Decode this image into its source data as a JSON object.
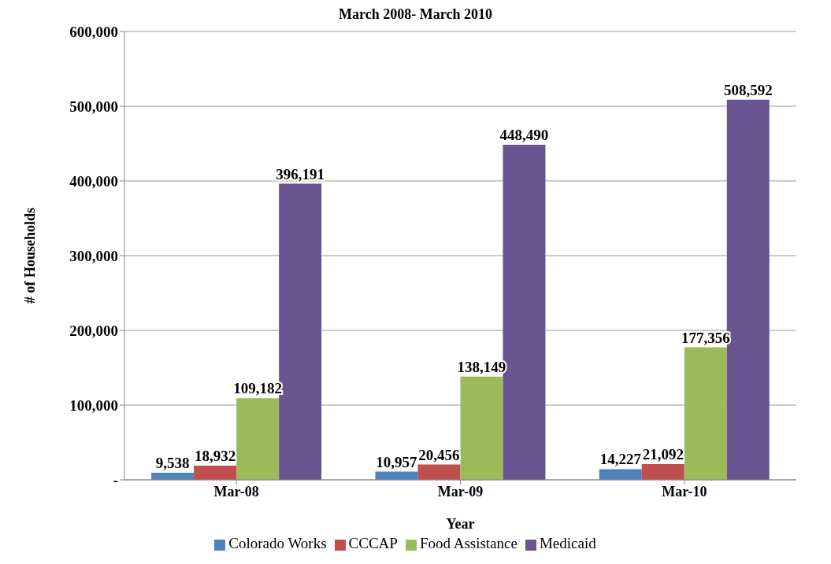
{
  "chart_data": {
    "type": "bar",
    "title": "March 2008- March 2010",
    "xlabel": "Year",
    "ylabel": "# of Households",
    "categories": [
      "Mar-08",
      "Mar-09",
      "Mar-10"
    ],
    "series": [
      {
        "name": "Colorado Works",
        "color": "#4f81bd",
        "values": [
          9538,
          10957,
          14227
        ],
        "value_labels": [
          "9,538",
          "10,957",
          "14,227"
        ]
      },
      {
        "name": "CCCAP",
        "color": "#c0504d",
        "values": [
          18932,
          20456,
          21092
        ],
        "value_labels": [
          "18,932",
          "20,456",
          "21,092"
        ]
      },
      {
        "name": "Food Assistance",
        "color": "#9bbb59",
        "values": [
          109182,
          138149,
          177356
        ],
        "value_labels": [
          "109,182",
          "138,149",
          "177,356"
        ]
      },
      {
        "name": "Medicaid",
        "color": "#6a5590",
        "values": [
          396191,
          448490,
          508592
        ],
        "value_labels": [
          "396,191",
          "448,490",
          "508,592"
        ]
      }
    ],
    "ylim": [
      0,
      600000
    ],
    "yticks": [
      {
        "value": 0,
        "label": "-"
      },
      {
        "value": 100000,
        "label": "100,000"
      },
      {
        "value": 200000,
        "label": "200,000"
      },
      {
        "value": 300000,
        "label": "300,000"
      },
      {
        "value": 400000,
        "label": "400,000"
      },
      {
        "value": 500000,
        "label": "500,000"
      },
      {
        "value": 600000,
        "label": "600,000"
      }
    ],
    "grid": "y",
    "legend": "bottom"
  }
}
